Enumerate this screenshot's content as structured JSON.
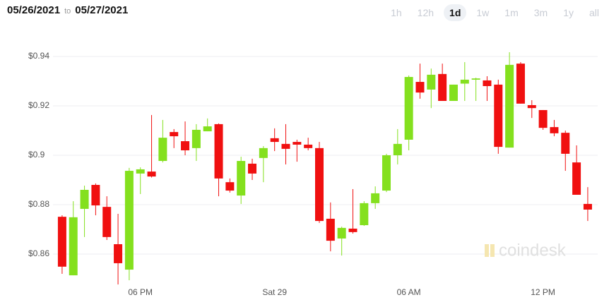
{
  "header": {
    "date_from": "05/26/2021",
    "separator": "to",
    "date_to": "05/27/2021",
    "ranges": [
      "1h",
      "12h",
      "1d",
      "1w",
      "1m",
      "3m",
      "1y",
      "all"
    ],
    "selected_range": "1d"
  },
  "watermark": "coindesk",
  "chart_data": {
    "type": "candlestick",
    "categories": [
      null,
      null,
      null,
      null,
      null,
      null,
      null,
      "06 PM",
      null,
      null,
      null,
      null,
      null,
      null,
      null,
      null,
      null,
      null,
      null,
      "Sat 29",
      null,
      null,
      null,
      null,
      null,
      null,
      null,
      null,
      null,
      null,
      null,
      "06 AM",
      null,
      null,
      null,
      null,
      null,
      null,
      null,
      null,
      null,
      null,
      null,
      "12 PM",
      null,
      null,
      null,
      null
    ],
    "open": [
      0.8751,
      0.8514,
      0.8783,
      0.888,
      0.8791,
      0.864,
      0.8537,
      0.8926,
      0.8934,
      0.8977,
      0.9094,
      0.9057,
      0.9029,
      0.9097,
      0.9126,
      0.8891,
      0.8837,
      0.8966,
      0.8989,
      0.9069,
      0.9046,
      0.9054,
      0.9043,
      0.9029,
      0.8743,
      0.8663,
      0.8703,
      0.8717,
      0.8806,
      0.8857,
      0.9,
      0.9063,
      0.9297,
      0.9266,
      0.9329,
      0.922,
      0.929,
      0.9306,
      0.9303,
      0.9286,
      0.9031,
      0.9371,
      0.9203,
      0.9183,
      0.9114,
      0.9091,
      0.8971,
      0.8803
    ],
    "high": [
      0.8757,
      0.8814,
      0.8877,
      0.8886,
      0.8834,
      0.8763,
      0.8949,
      0.8951,
      0.9163,
      0.9143,
      0.9106,
      0.9137,
      0.9126,
      0.9149,
      0.9129,
      0.8906,
      0.8994,
      0.8986,
      0.9037,
      0.9109,
      0.9126,
      0.9063,
      0.9071,
      0.9054,
      0.8809,
      0.8711,
      0.8863,
      0.8814,
      0.8874,
      0.9006,
      0.9106,
      0.9323,
      0.9371,
      0.9351,
      0.9371,
      0.9286,
      0.9377,
      0.9314,
      0.932,
      0.9306,
      0.9417,
      0.9377,
      0.9223,
      0.9183,
      0.9143,
      0.91,
      0.904,
      0.8871
    ],
    "low": [
      0.852,
      0.8514,
      0.8669,
      0.8757,
      0.8657,
      0.8477,
      0.8494,
      0.8843,
      0.891,
      0.8971,
      0.9029,
      0.9,
      0.8977,
      0.9097,
      0.8834,
      0.8849,
      0.8803,
      0.89,
      0.8891,
      0.9017,
      0.8963,
      0.8974,
      0.902,
      0.8726,
      0.8611,
      0.8594,
      0.8683,
      0.8714,
      0.8783,
      0.8851,
      0.8963,
      0.902,
      0.9229,
      0.9191,
      0.922,
      0.922,
      0.922,
      0.922,
      0.922,
      0.9006,
      0.9031,
      0.9209,
      0.9151,
      0.9103,
      0.9077,
      0.8937,
      0.884,
      0.8734
    ],
    "close": [
      0.8549,
      0.8749,
      0.886,
      0.8797,
      0.8669,
      0.8563,
      0.8937,
      0.8943,
      0.8914,
      0.9071,
      0.9077,
      0.902,
      0.9103,
      0.9117,
      0.8906,
      0.8857,
      0.8977,
      0.8926,
      0.9029,
      0.9054,
      0.9026,
      0.9043,
      0.9029,
      0.8734,
      0.8654,
      0.8706,
      0.8689,
      0.8806,
      0.8846,
      0.9,
      0.9046,
      0.9317,
      0.9254,
      0.9326,
      0.922,
      0.9286,
      0.9306,
      0.9311,
      0.928,
      0.9034,
      0.9366,
      0.9209,
      0.9191,
      0.9111,
      0.9089,
      0.9006,
      0.884,
      0.878
    ],
    "up_color": "#84e01e",
    "down_color": "#f01010",
    "ylim": [
      0.85,
      0.95
    ],
    "yticks": [
      {
        "value": 0.86,
        "label": "$0.86"
      },
      {
        "value": 0.88,
        "label": "$0.88"
      },
      {
        "value": 0.9,
        "label": "$0.9"
      },
      {
        "value": 0.92,
        "label": "$0.92"
      },
      {
        "value": 0.94,
        "label": "$0.94"
      }
    ],
    "grid": true
  }
}
